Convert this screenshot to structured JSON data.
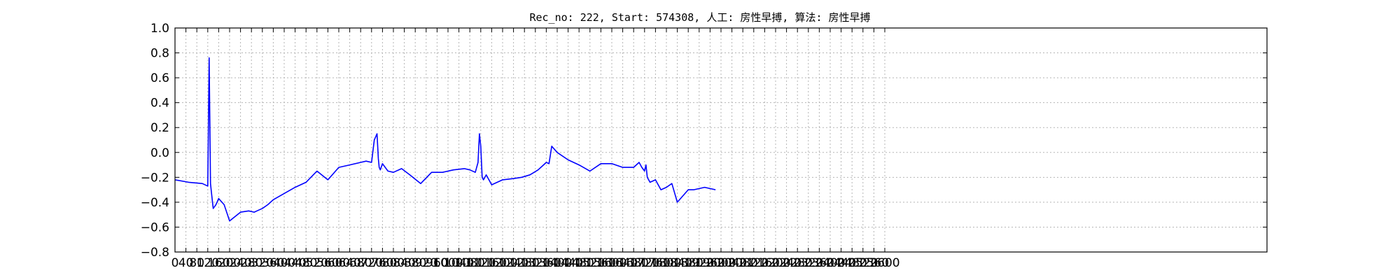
{
  "chart_data": {
    "type": "line",
    "title": "Rec_no: 222, Start: 574308, 人工: 房性早搏, 算法: 房性早搏",
    "xlabel": "",
    "ylabel": "",
    "xlim": [
      0,
      4000
    ],
    "ylim": [
      -0.8,
      1.0
    ],
    "grid": true,
    "yticks": [
      1.0,
      0.8,
      0.6,
      0.4,
      0.2,
      0.0,
      -0.2,
      -0.4,
      -0.6,
      -0.8
    ],
    "ytick_labels": [
      "1.0",
      "0.8",
      "0.6",
      "0.4",
      "0.2",
      "0.0",
      "−0.2",
      "−0.4",
      "−0.6",
      "−0.8"
    ],
    "xtick_labels": [
      "0",
      "40",
      "80",
      "120",
      "160",
      "200",
      "240",
      "280",
      "320",
      "360",
      "400",
      "440",
      "480",
      "520",
      "560",
      "600",
      "640",
      "680",
      "720",
      "760",
      "800",
      "840",
      "880",
      "920",
      "960",
      "1000",
      "1040",
      "1080",
      "1120",
      "1160",
      "1200",
      "1240",
      "1280",
      "1320",
      "1360",
      "1400",
      "1440",
      "1480",
      "1520",
      "1560",
      "1600",
      "1640",
      "1680",
      "1720",
      "1760",
      "1800",
      "1840",
      "1880",
      "1920",
      "1960",
      "2000",
      "2040",
      "2080",
      "2120",
      "2160",
      "2200",
      "2240",
      "2280",
      "2320",
      "2360",
      "2400",
      "2440",
      "2480",
      "2520",
      "2560",
      "2600"
    ],
    "colors": {
      "normal": "#0000ff",
      "highlight": "#ff0000"
    },
    "series": [
      {
        "color": "#0000ff",
        "x": [
          0,
          50,
          100,
          120,
          125,
          130,
          135,
          140,
          150,
          160,
          180,
          200,
          240,
          270,
          290,
          300,
          320,
          340,
          360,
          400,
          440,
          480,
          520,
          560,
          600,
          640,
          680,
          700,
          720,
          730,
          740,
          745,
          748,
          752,
          760,
          770,
          780,
          800,
          830,
          860,
          900,
          940,
          980,
          1020,
          1060,
          1080,
          1100,
          1110,
          1115,
          1120,
          1125,
          1130,
          1140,
          1160,
          1200,
          1240,
          1270,
          1300,
          1330,
          1350,
          1360,
          1370,
          1380,
          1400,
          1440,
          1480,
          1520,
          1560,
          1600,
          1640,
          1680,
          1700,
          1710,
          1720,
          1725,
          1730,
          1740,
          1760,
          1780,
          1800,
          1820,
          1840,
          1860,
          1880,
          1900,
          1940,
          1980
        ],
        "y": [
          -0.22,
          -0.24,
          -0.25,
          -0.27,
          0.76,
          -0.25,
          -0.35,
          -0.45,
          -0.42,
          -0.37,
          -0.42,
          -0.55,
          -0.48,
          -0.47,
          -0.48,
          -0.47,
          -0.45,
          -0.42,
          -0.38,
          -0.33,
          -0.28,
          -0.24,
          -0.15,
          -0.22,
          -0.12,
          -0.1,
          -0.08,
          -0.07,
          -0.08,
          0.1,
          0.15,
          -0.05,
          -0.12,
          -0.14,
          -0.09,
          -0.12,
          -0.15,
          -0.16,
          -0.13,
          -0.18,
          -0.25,
          -0.16,
          -0.16,
          -0.14,
          -0.13,
          -0.14,
          -0.16,
          -0.08,
          0.15,
          0.05,
          -0.2,
          -0.22,
          -0.18,
          -0.26,
          -0.22,
          -0.21,
          -0.2,
          -0.18,
          -0.14,
          -0.1,
          -0.08,
          -0.09,
          0.05,
          0.0,
          -0.06,
          -0.1,
          -0.15,
          -0.09,
          -0.09,
          -0.12,
          -0.12,
          -0.08,
          -0.12,
          -0.15,
          -0.1,
          -0.2,
          -0.24,
          -0.22,
          -0.3,
          -0.28,
          -0.25,
          -0.4,
          -0.35,
          -0.3,
          -0.3,
          -0.28,
          -0.3
        ]
      }
    ]
  }
}
